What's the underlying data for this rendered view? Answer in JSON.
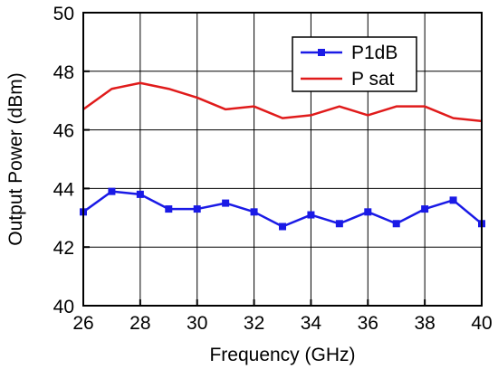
{
  "chart_data": {
    "type": "line",
    "title": "",
    "xlabel": "Frequency  (GHz)",
    "ylabel": "Output Power  (dBm)",
    "xlim": [
      26,
      40
    ],
    "ylim": [
      40,
      50
    ],
    "x_ticks": [
      26,
      28,
      30,
      32,
      34,
      36,
      38,
      40
    ],
    "y_ticks": [
      40,
      42,
      44,
      46,
      48,
      50
    ],
    "grid": true,
    "legend_position": "top-right",
    "x": [
      26,
      27,
      28,
      29,
      30,
      31,
      32,
      33,
      34,
      35,
      36,
      37,
      38,
      39,
      40
    ],
    "series": [
      {
        "name": "P1dB",
        "color": "#1a1ae6",
        "marker": "square",
        "values": [
          43.2,
          43.9,
          43.8,
          43.3,
          43.3,
          43.5,
          43.2,
          42.7,
          43.1,
          42.8,
          43.2,
          42.8,
          43.3,
          43.6,
          42.8
        ]
      },
      {
        "name": "P sat",
        "color": "#e01b1b",
        "marker": "none",
        "values": [
          46.7,
          47.4,
          47.6,
          47.4,
          47.1,
          46.7,
          46.8,
          46.4,
          46.5,
          46.8,
          46.5,
          46.8,
          46.8,
          46.4,
          46.3
        ]
      }
    ]
  }
}
